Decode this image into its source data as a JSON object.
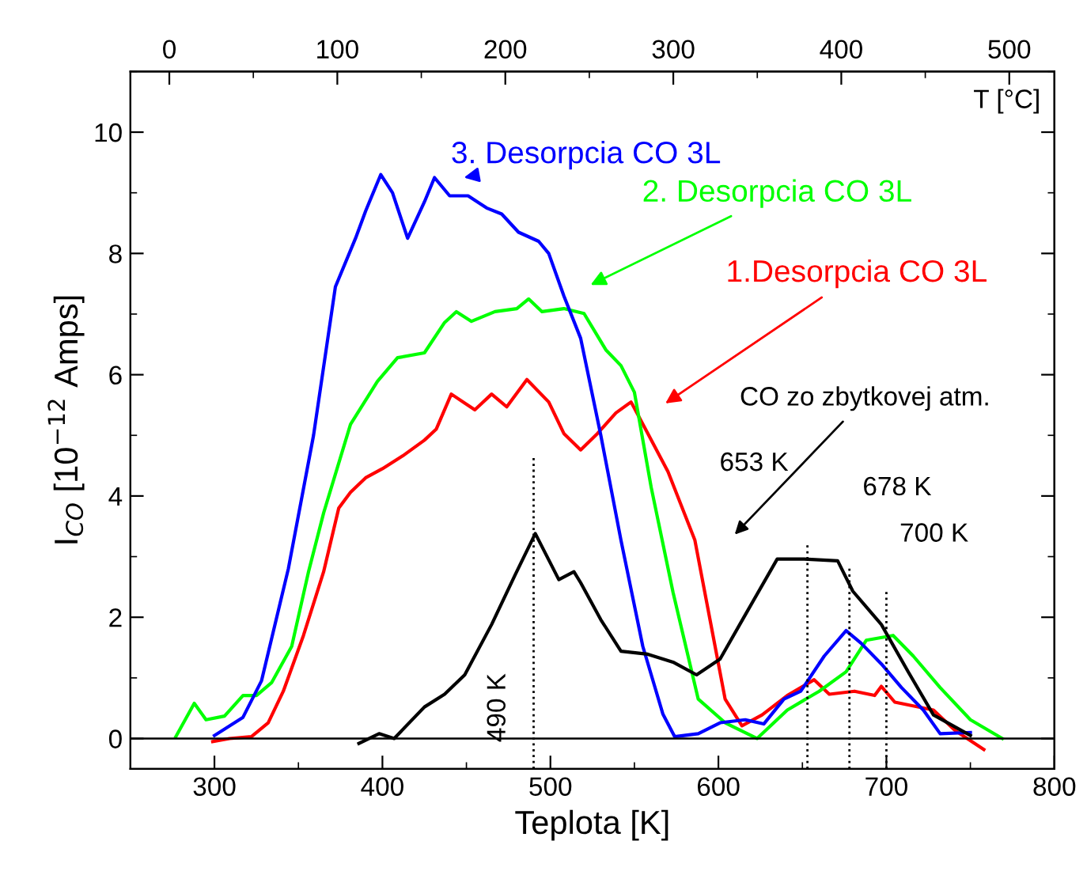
{
  "chart_data": {
    "type": "line",
    "xlabel": "Teplota [K]",
    "ylabel": "I$_{CO}$ [10$^{−12}$ Amps]",
    "x2label": "T [°C]",
    "xlim": [
      250,
      800
    ],
    "xticks": [
      300,
      400,
      500,
      600,
      700,
      800
    ],
    "x2lim": [
      -23.15,
      526.85
    ],
    "x2ticks": [
      0,
      100,
      200,
      300,
      400,
      500
    ],
    "ylim": [
      -0.5,
      11
    ],
    "yticks": [
      0,
      2,
      4,
      6,
      8,
      10
    ],
    "grid": false,
    "legend": false,
    "marker": "none",
    "line_style": "solid",
    "series": [
      {
        "color": "#ff0000",
        "x": [
          299,
          309,
          322,
          332,
          341,
          353,
          365,
          374,
          381,
          390,
          400,
          412,
          425,
          432,
          441,
          455,
          465,
          474,
          486,
          499,
          508,
          518,
          528,
          539,
          548,
          558,
          570,
          586,
          595,
          604,
          614,
          626,
          641,
          657,
          666,
          681,
          693,
          697,
          705,
          728,
          741,
          758
        ],
        "values": [
          -0.05,
          0,
          0.03,
          0.26,
          0.78,
          1.7,
          2.75,
          3.8,
          4.06,
          4.3,
          4.45,
          4.66,
          4.92,
          5.1,
          5.68,
          5.42,
          5.68,
          5.47,
          5.92,
          5.55,
          5.03,
          4.76,
          5.03,
          5.37,
          5.55,
          5.03,
          4.4,
          3.27,
          1.96,
          0.65,
          0.21,
          0.39,
          0.71,
          0.97,
          0.73,
          0.78,
          0.71,
          0.86,
          0.6,
          0.47,
          0.13,
          -0.18
        ]
      },
      {
        "color": "#00ff00",
        "x": [
          277,
          288,
          295,
          306,
          317,
          325,
          334,
          346,
          356,
          365,
          381,
          397,
          409,
          425,
          437,
          444,
          453,
          467,
          480,
          487,
          495,
          508,
          520,
          533,
          542,
          550,
          560,
          573,
          588,
          604,
          623,
          641,
          660,
          676,
          688,
          704,
          716,
          732,
          750,
          769
        ],
        "values": [
          0.03,
          0.58,
          0.31,
          0.37,
          0.71,
          0.71,
          0.92,
          1.52,
          2.75,
          3.72,
          5.18,
          5.89,
          6.28,
          6.36,
          6.86,
          7.04,
          6.88,
          7.04,
          7.09,
          7.25,
          7.04,
          7.09,
          7.01,
          6.41,
          6.15,
          5.71,
          4.14,
          2.41,
          0.65,
          0.26,
          0,
          0.47,
          0.78,
          1.1,
          1.62,
          1.7,
          1.36,
          0.84,
          0.31,
          0
        ]
      },
      {
        "color": "#0000ff",
        "x": [
          300,
          317,
          328,
          344,
          359,
          372,
          384,
          390,
          399,
          406,
          415,
          425,
          431,
          440,
          451,
          462,
          471,
          481,
          493,
          499,
          508,
          518,
          530,
          542,
          555,
          567,
          574,
          588,
          601,
          616,
          627,
          639,
          649,
          663,
          676,
          685,
          697,
          709,
          722,
          732,
          750
        ],
        "values": [
          0.05,
          0.35,
          0.95,
          2.8,
          5.0,
          7.45,
          8.25,
          8.7,
          9.3,
          9.0,
          8.25,
          8.85,
          9.25,
          8.95,
          8.95,
          8.75,
          8.65,
          8.35,
          8.2,
          8.0,
          7.3,
          6.6,
          5.0,
          3.27,
          1.52,
          0.4,
          0.03,
          0.08,
          0.26,
          0.31,
          0.24,
          0.65,
          0.78,
          1.36,
          1.78,
          1.57,
          1.23,
          0.84,
          0.47,
          0.08,
          0.1
        ]
      },
      {
        "color": "#000000",
        "x": [
          386,
          398,
          407,
          425,
          437,
          449,
          465,
          479,
          491,
          505,
          514,
          518,
          530,
          542,
          558,
          573,
          587,
          601,
          616,
          635,
          651,
          671,
          680,
          697,
          713,
          728,
          750
        ],
        "values": [
          -0.08,
          0.08,
          0,
          0.52,
          0.73,
          1.05,
          1.88,
          2.7,
          3.38,
          2.62,
          2.75,
          2.57,
          1.96,
          1.44,
          1.39,
          1.26,
          1.05,
          1.31,
          2.04,
          2.96,
          2.96,
          2.93,
          2.43,
          1.88,
          1.1,
          0.39,
          0.05
        ]
      }
    ],
    "annotations": [
      "1.Desorpcia CO 3L",
      "2. Desorpcia CO 3L",
      "3. Desorpcia CO 3L",
      "CO zo zbytkovej atm."
    ],
    "ref_lines": [
      {
        "axis": "y",
        "value": 0,
        "color": "#000000",
        "line_style": "solid"
      },
      {
        "axis": "x",
        "value": 490,
        "label": "490 K",
        "color": "#000000",
        "line_style": "dotted"
      },
      {
        "axis": "x",
        "value": 653,
        "label": "653 K",
        "color": "#000000",
        "line_style": "dotted"
      },
      {
        "axis": "x",
        "value": 678,
        "label": "678 K",
        "color": "#000000",
        "line_style": "dotted"
      },
      {
        "axis": "x",
        "value": 700,
        "label": "700 K",
        "color": "#000000",
        "line_style": "dotted"
      }
    ]
  }
}
